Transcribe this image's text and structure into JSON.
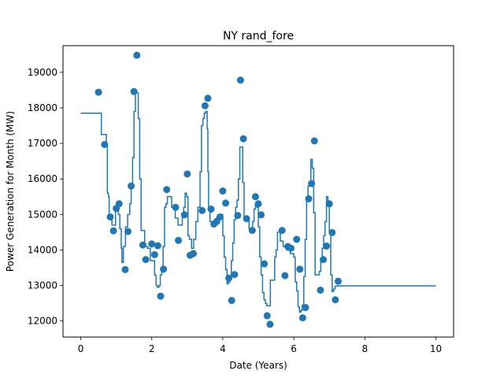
{
  "chart_data": {
    "type": "scatter",
    "title": "NY rand_fore",
    "xlabel": "Date (Years)",
    "ylabel": "Power Generation for Month (MW)",
    "xlim": [
      -0.5,
      10.5
    ],
    "ylim": [
      11550,
      19750
    ],
    "xticks": [
      0,
      2,
      4,
      6,
      8,
      10
    ],
    "yticks": [
      12000,
      13000,
      14000,
      15000,
      16000,
      17000,
      18000,
      19000
    ],
    "grid": false,
    "legend": "none",
    "color": "#1f77b4",
    "series": [
      {
        "type": "scatter",
        "points": [
          [
            0.5,
            18440
          ],
          [
            0.67,
            16970
          ],
          [
            0.83,
            14930
          ],
          [
            0.92,
            14540
          ],
          [
            1.0,
            15170
          ],
          [
            1.08,
            15300
          ],
          [
            1.25,
            13450
          ],
          [
            1.33,
            14520
          ],
          [
            1.42,
            15800
          ],
          [
            1.5,
            18460
          ],
          [
            1.58,
            19480
          ],
          [
            1.75,
            14140
          ],
          [
            1.83,
            13730
          ],
          [
            2.0,
            14170
          ],
          [
            2.08,
            13870
          ],
          [
            2.17,
            14120
          ],
          [
            2.25,
            12700
          ],
          [
            2.33,
            13460
          ],
          [
            2.42,
            15700
          ],
          [
            2.67,
            15200
          ],
          [
            2.75,
            14270
          ],
          [
            2.92,
            14990
          ],
          [
            3.0,
            16140
          ],
          [
            3.08,
            13850
          ],
          [
            3.17,
            13900
          ],
          [
            3.42,
            15110
          ],
          [
            3.5,
            18060
          ],
          [
            3.58,
            18270
          ],
          [
            3.67,
            15150
          ],
          [
            3.75,
            14730
          ],
          [
            3.83,
            14800
          ],
          [
            3.92,
            14930
          ],
          [
            4.0,
            15660
          ],
          [
            4.08,
            15320
          ],
          [
            4.17,
            13210
          ],
          [
            4.25,
            12580
          ],
          [
            4.33,
            13310
          ],
          [
            4.42,
            14970
          ],
          [
            4.5,
            18780
          ],
          [
            4.58,
            17130
          ],
          [
            4.67,
            14880
          ],
          [
            4.83,
            14550
          ],
          [
            4.92,
            15500
          ],
          [
            5.0,
            15300
          ],
          [
            5.08,
            14990
          ],
          [
            5.17,
            13610
          ],
          [
            5.25,
            12150
          ],
          [
            5.33,
            11910
          ],
          [
            5.67,
            14550
          ],
          [
            5.75,
            13280
          ],
          [
            5.83,
            14100
          ],
          [
            5.92,
            14050
          ],
          [
            6.08,
            14300
          ],
          [
            6.17,
            13460
          ],
          [
            6.25,
            12090
          ],
          [
            6.33,
            12380
          ],
          [
            6.42,
            15440
          ],
          [
            6.5,
            15870
          ],
          [
            6.58,
            17070
          ],
          [
            6.75,
            12870
          ],
          [
            6.83,
            13730
          ],
          [
            6.92,
            14110
          ],
          [
            7.0,
            15300
          ],
          [
            7.08,
            14490
          ],
          [
            7.17,
            12600
          ],
          [
            7.25,
            13120
          ]
        ]
      },
      {
        "type": "step",
        "points": [
          [
            0.0,
            17850
          ],
          [
            0.55,
            17850
          ],
          [
            0.58,
            17250
          ],
          [
            0.7,
            17250
          ],
          [
            0.72,
            16950
          ],
          [
            0.75,
            15600
          ],
          [
            0.78,
            15500
          ],
          [
            0.8,
            15000
          ],
          [
            0.86,
            15000
          ],
          [
            0.88,
            14700
          ],
          [
            0.96,
            14700
          ],
          [
            0.98,
            15100
          ],
          [
            1.02,
            15300
          ],
          [
            1.06,
            15000
          ],
          [
            1.1,
            14600
          ],
          [
            1.14,
            14050
          ],
          [
            1.16,
            13650
          ],
          [
            1.2,
            14100
          ],
          [
            1.24,
            14100
          ],
          [
            1.26,
            14650
          ],
          [
            1.3,
            14650
          ],
          [
            1.32,
            15000
          ],
          [
            1.38,
            15300
          ],
          [
            1.42,
            15800
          ],
          [
            1.46,
            16600
          ],
          [
            1.5,
            17900
          ],
          [
            1.54,
            18420
          ],
          [
            1.58,
            18420
          ],
          [
            1.62,
            17700
          ],
          [
            1.66,
            16000
          ],
          [
            1.7,
            14550
          ],
          [
            1.76,
            14550
          ],
          [
            1.8,
            14100
          ],
          [
            1.86,
            14100
          ],
          [
            1.88,
            14050
          ],
          [
            1.94,
            14050
          ],
          [
            1.96,
            13700
          ],
          [
            2.04,
            13700
          ],
          [
            2.08,
            13300
          ],
          [
            2.12,
            13000
          ],
          [
            2.16,
            12950
          ],
          [
            2.2,
            13000
          ],
          [
            2.24,
            13300
          ],
          [
            2.28,
            13500
          ],
          [
            2.32,
            14100
          ],
          [
            2.36,
            15200
          ],
          [
            2.4,
            15300
          ],
          [
            2.44,
            15500
          ],
          [
            2.52,
            15500
          ],
          [
            2.56,
            15200
          ],
          [
            2.62,
            15200
          ],
          [
            2.66,
            14900
          ],
          [
            2.7,
            14900
          ],
          [
            2.74,
            14700
          ],
          [
            2.8,
            14700
          ],
          [
            2.86,
            14950
          ],
          [
            2.9,
            15200
          ],
          [
            2.94,
            15600
          ],
          [
            2.98,
            15500
          ],
          [
            3.02,
            14400
          ],
          [
            3.06,
            14300
          ],
          [
            3.12,
            14050
          ],
          [
            3.18,
            14300
          ],
          [
            3.24,
            14800
          ],
          [
            3.3,
            15200
          ],
          [
            3.36,
            16200
          ],
          [
            3.4,
            17500
          ],
          [
            3.44,
            17700
          ],
          [
            3.48,
            17850
          ],
          [
            3.52,
            17900
          ],
          [
            3.56,
            17400
          ],
          [
            3.58,
            16200
          ],
          [
            3.6,
            15150
          ],
          [
            3.64,
            14800
          ],
          [
            3.68,
            14800
          ],
          [
            3.72,
            14750
          ],
          [
            3.78,
            14750
          ],
          [
            3.82,
            14900
          ],
          [
            3.86,
            14900
          ],
          [
            3.9,
            15000
          ],
          [
            3.96,
            15000
          ],
          [
            4.0,
            14400
          ],
          [
            4.04,
            13800
          ],
          [
            4.08,
            13450
          ],
          [
            4.12,
            13050
          ],
          [
            4.16,
            13100
          ],
          [
            4.2,
            13250
          ],
          [
            4.24,
            13700
          ],
          [
            4.28,
            14200
          ],
          [
            4.32,
            14850
          ],
          [
            4.36,
            15200
          ],
          [
            4.4,
            15400
          ],
          [
            4.44,
            16000
          ],
          [
            4.48,
            16900
          ],
          [
            4.52,
            16900
          ],
          [
            4.56,
            15900
          ],
          [
            4.6,
            14950
          ],
          [
            4.64,
            14850
          ],
          [
            4.7,
            14850
          ],
          [
            4.74,
            14600
          ],
          [
            4.8,
            14600
          ],
          [
            4.84,
            14800
          ],
          [
            4.88,
            15150
          ],
          [
            4.92,
            15300
          ],
          [
            4.96,
            15200
          ],
          [
            5.0,
            14650
          ],
          [
            5.04,
            13800
          ],
          [
            5.08,
            13300
          ],
          [
            5.12,
            12800
          ],
          [
            5.16,
            12600
          ],
          [
            5.2,
            12500
          ],
          [
            5.24,
            12430
          ],
          [
            5.3,
            12430
          ],
          [
            5.34,
            13150
          ],
          [
            5.42,
            13150
          ],
          [
            5.46,
            13800
          ],
          [
            5.5,
            14000
          ],
          [
            5.54,
            14500
          ],
          [
            5.58,
            14500
          ],
          [
            5.62,
            14250
          ],
          [
            5.66,
            14250
          ],
          [
            5.7,
            14100
          ],
          [
            5.76,
            14100
          ],
          [
            5.8,
            14000
          ],
          [
            5.86,
            14000
          ],
          [
            5.9,
            13900
          ],
          [
            5.96,
            13900
          ],
          [
            6.0,
            13800
          ],
          [
            6.04,
            13100
          ],
          [
            6.08,
            12850
          ],
          [
            6.12,
            12400
          ],
          [
            6.16,
            12250
          ],
          [
            6.2,
            12300
          ],
          [
            6.24,
            12450
          ],
          [
            6.28,
            13250
          ],
          [
            6.32,
            14300
          ],
          [
            6.36,
            15500
          ],
          [
            6.4,
            15800
          ],
          [
            6.44,
            15900
          ],
          [
            6.48,
            16550
          ],
          [
            6.52,
            16300
          ],
          [
            6.56,
            15050
          ],
          [
            6.6,
            13300
          ],
          [
            6.68,
            13300
          ],
          [
            6.72,
            13400
          ],
          [
            6.76,
            13750
          ],
          [
            6.8,
            14050
          ],
          [
            6.84,
            14400
          ],
          [
            6.88,
            14800
          ],
          [
            6.92,
            15500
          ],
          [
            6.96,
            15350
          ],
          [
            7.0,
            14500
          ],
          [
            7.04,
            13300
          ],
          [
            7.08,
            12830
          ],
          [
            7.12,
            12900
          ],
          [
            7.16,
            12980
          ],
          [
            7.22,
            12990
          ],
          [
            10.0,
            12990
          ]
        ]
      }
    ]
  }
}
